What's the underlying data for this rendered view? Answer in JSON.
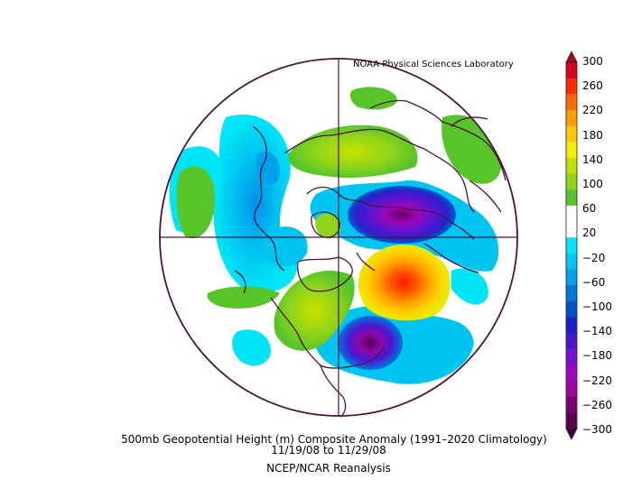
{
  "map": {
    "credit": "NOAA Physical Sciences Laboratory",
    "caption_line1": "500mb Geopotential Height (m) Composite Anomaly (1991–2020 Climatology)",
    "caption_line2": "11/19/08    to 11/29/08",
    "caption_line3": "NCEP/NCAR Reanalysis",
    "projection": "north polar stereographic",
    "variable": "500mb Geopotential Height (m) Composite Anomaly",
    "boundary_color": "#4a1440"
  },
  "colorbar": {
    "labels": [
      "300",
      "260",
      "220",
      "180",
      "140",
      "100",
      "60",
      "20",
      "−20",
      "−60",
      "−100",
      "−140",
      "−180",
      "−220",
      "−260",
      "−300"
    ],
    "colors": [
      "#d7001f",
      "#ff2a00",
      "#ff6a00",
      "#ff9e00",
      "#ffc800",
      "#f2ef00",
      "#c3e000",
      "#8fd419",
      "#57c52a",
      "#ffffff",
      "#ffffff",
      "#00e5f5",
      "#00c5f0",
      "#00a1ec",
      "#0077da",
      "#0050c8",
      "#1a1fc8",
      "#4b14d0",
      "#7a0fd6",
      "#9b08c4",
      "#a0069e",
      "#7a0072",
      "#5a0050"
    ]
  }
}
